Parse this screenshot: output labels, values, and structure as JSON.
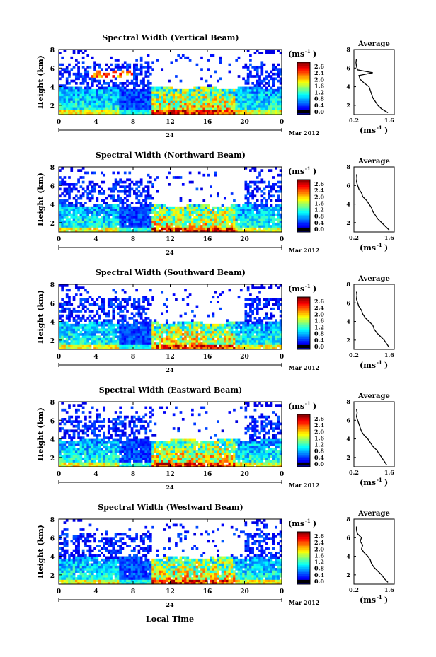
{
  "figure": {
    "x_axis_label": "Local Time",
    "date_label": "Mar 2012",
    "day_label": "24",
    "colorbar_unit": "(ms",
    "colorbar_unit_exp": "-1",
    "avg_title": "Average",
    "avg_unit": "(ms",
    "avg_unit_exp": "-1",
    "y_label": "Height (km)"
  },
  "chart_data": [
    {
      "type": "heatmap",
      "title": "Spectral Width (Vertical Beam)",
      "ylabel": "Height (km)",
      "xlabel": "",
      "x_ticks": [
        "0",
        "4",
        "8",
        "12",
        "16",
        "20",
        "0"
      ],
      "xlim": [
        0,
        24
      ],
      "y_ticks": [
        "2",
        "4",
        "6",
        "8"
      ],
      "ylim": [
        1,
        8
      ],
      "colorbar": {
        "ticks": [
          "2.6",
          "2.4",
          "2.0",
          "1.6",
          "1.2",
          "0.8",
          "0.4",
          "0.0"
        ],
        "range": [
          0,
          2.8
        ]
      },
      "average_profile": {
        "title": "Average",
        "xlim": [
          0.2,
          1.8
        ],
        "x_ticks": [
          "0.2",
          "1.6"
        ],
        "y_ticks": [
          "2",
          "4",
          "6",
          "8"
        ],
        "height": [
          1.2,
          1.6,
          2.0,
          2.4,
          2.8,
          3.2,
          3.6,
          4.0,
          4.4,
          4.8,
          5.2,
          5.5,
          5.8,
          6.2,
          6.6,
          7.0
        ],
        "width": [
          1.55,
          1.3,
          1.15,
          1.05,
          0.95,
          0.9,
          0.85,
          0.8,
          0.6,
          0.45,
          0.4,
          0.95,
          0.35,
          0.3,
          0.28,
          0.3
        ]
      }
    },
    {
      "type": "heatmap",
      "title": "Spectral Width (Northward Beam)",
      "ylabel": "Height (km)",
      "xlabel": "",
      "x_ticks": [
        "0",
        "4",
        "8",
        "12",
        "16",
        "20",
        "0"
      ],
      "xlim": [
        0,
        24
      ],
      "y_ticks": [
        "2",
        "4",
        "6",
        "8"
      ],
      "ylim": [
        1,
        8
      ],
      "colorbar": {
        "ticks": [
          "2.6",
          "2.4",
          "2.0",
          "1.6",
          "1.2",
          "0.8",
          "0.4",
          "0.0"
        ],
        "range": [
          0,
          2.8
        ]
      },
      "average_profile": {
        "title": "Average",
        "xlim": [
          0.2,
          1.8
        ],
        "x_ticks": [
          "0.2",
          "1.6"
        ],
        "y_ticks": [
          "2",
          "4",
          "6",
          "8"
        ],
        "height": [
          1.2,
          1.6,
          2.0,
          2.4,
          2.8,
          3.2,
          3.6,
          4.0,
          4.4,
          4.8,
          5.2,
          5.6,
          6.0,
          6.4,
          6.8,
          7.2
        ],
        "width": [
          1.6,
          1.45,
          1.3,
          1.15,
          1.05,
          0.95,
          0.9,
          0.8,
          0.7,
          0.55,
          0.5,
          0.4,
          0.35,
          0.3,
          0.32,
          0.3
        ]
      }
    },
    {
      "type": "heatmap",
      "title": "Spectral Width (Southward Beam)",
      "ylabel": "Height (km)",
      "xlabel": "",
      "x_ticks": [
        "0",
        "4",
        "8",
        "12",
        "16",
        "20",
        "0"
      ],
      "xlim": [
        0,
        24
      ],
      "y_ticks": [
        "2",
        "4",
        "6",
        "8"
      ],
      "ylim": [
        1,
        8
      ],
      "colorbar": {
        "ticks": [
          "2.6",
          "2.4",
          "2.0",
          "1.6",
          "1.2",
          "0.8",
          "0.4",
          "0.0"
        ],
        "range": [
          0,
          2.8
        ]
      },
      "average_profile": {
        "title": "Average",
        "xlim": [
          0.2,
          1.8
        ],
        "x_ticks": [
          "0.2",
          "1.6"
        ],
        "y_ticks": [
          "2",
          "4",
          "6",
          "8"
        ],
        "height": [
          1.2,
          1.6,
          2.0,
          2.4,
          2.8,
          3.2,
          3.6,
          4.0,
          4.4,
          4.8,
          5.2,
          5.6,
          6.0,
          6.4,
          6.8,
          7.2
        ],
        "width": [
          1.6,
          1.5,
          1.4,
          1.25,
          1.1,
          1.0,
          0.95,
          0.8,
          0.65,
          0.55,
          0.5,
          0.4,
          0.35,
          0.3,
          0.32,
          0.3
        ]
      }
    },
    {
      "type": "heatmap",
      "title": "Spectral Width (Eastward Beam)",
      "ylabel": "Height (km)",
      "xlabel": "",
      "x_ticks": [
        "0",
        "4",
        "8",
        "12",
        "16",
        "20",
        "0"
      ],
      "xlim": [
        0,
        24
      ],
      "y_ticks": [
        "2",
        "4",
        "6",
        "8"
      ],
      "ylim": [
        1,
        8
      ],
      "colorbar": {
        "ticks": [
          "2.6",
          "2.4",
          "2.0",
          "1.6",
          "1.2",
          "0.8",
          "0.4",
          "0.0"
        ],
        "range": [
          0,
          2.8
        ]
      },
      "average_profile": {
        "title": "Average",
        "xlim": [
          0.2,
          1.8
        ],
        "x_ticks": [
          "0.2",
          "1.6"
        ],
        "y_ticks": [
          "2",
          "4",
          "6",
          "8"
        ],
        "height": [
          1.2,
          1.6,
          2.0,
          2.4,
          2.8,
          3.2,
          3.6,
          4.0,
          4.4,
          4.8,
          5.2,
          5.6,
          6.0,
          6.4,
          6.8,
          7.2
        ],
        "width": [
          1.5,
          1.4,
          1.3,
          1.2,
          1.1,
          0.95,
          0.85,
          0.75,
          0.6,
          0.5,
          0.45,
          0.4,
          0.35,
          0.3,
          0.33,
          0.3
        ]
      }
    },
    {
      "type": "heatmap",
      "title": "Spectral Width (Westward Beam)",
      "ylabel": "Height (km)",
      "xlabel": "Local Time",
      "x_ticks": [
        "0",
        "4",
        "8",
        "12",
        "16",
        "20",
        "0"
      ],
      "xlim": [
        0,
        24
      ],
      "y_ticks": [
        "2",
        "4",
        "6",
        "8"
      ],
      "ylim": [
        1,
        8
      ],
      "colorbar": {
        "ticks": [
          "2.6",
          "2.4",
          "2.0",
          "1.6",
          "1.2",
          "0.8",
          "0.4",
          "0.0"
        ],
        "range": [
          0,
          2.8
        ]
      },
      "average_profile": {
        "title": "Average",
        "xlim": [
          0.2,
          1.8
        ],
        "x_ticks": [
          "0.2",
          "1.6"
        ],
        "y_ticks": [
          "2",
          "4",
          "6",
          "8"
        ],
        "height": [
          1.2,
          1.6,
          2.0,
          2.4,
          2.8,
          3.2,
          3.6,
          4.0,
          4.4,
          4.8,
          5.2,
          5.6,
          6.0,
          6.4,
          6.8,
          7.2
        ],
        "width": [
          1.55,
          1.4,
          1.3,
          1.15,
          1.0,
          0.9,
          0.85,
          0.75,
          0.6,
          0.5,
          0.55,
          0.45,
          0.5,
          0.35,
          0.3,
          0.3
        ]
      }
    }
  ]
}
